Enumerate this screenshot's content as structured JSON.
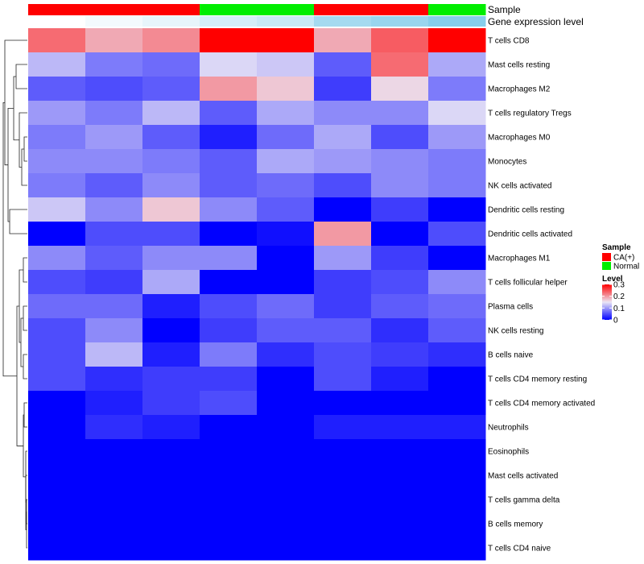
{
  "chart_data": {
    "type": "heatmap",
    "title": "",
    "rows": [
      "T cells CD8",
      "Mast cells resting",
      "Macrophages M2",
      "T cells regulatory  Tregs",
      "Macrophages M0",
      "Monocytes",
      "NK cells activated",
      "Dendritic cells resting",
      "Dendritic cells activated",
      "Macrophages M1",
      "T cells follicular helper",
      "Plasma cells",
      "NK cells resting",
      "B cells naive",
      "T cells CD4 memory resting",
      "T cells CD4 memory activated",
      "Neutrophils",
      "Eosinophils",
      "Mast cells activated",
      "T cells gamma delta",
      "B cells memory",
      "T cells CD4 naive"
    ],
    "values": [
      [
        0.23,
        0.19,
        0.21,
        0.3,
        0.3,
        0.19,
        0.24,
        0.3
      ],
      [
        0.12,
        0.08,
        0.07,
        0.14,
        0.13,
        0.06,
        0.23,
        0.11
      ],
      [
        0.06,
        0.05,
        0.06,
        0.2,
        0.17,
        0.04,
        0.16,
        0.08
      ],
      [
        0.1,
        0.08,
        0.12,
        0.06,
        0.11,
        0.09,
        0.09,
        0.14
      ],
      [
        0.08,
        0.1,
        0.06,
        0.02,
        0.07,
        0.11,
        0.05,
        0.1
      ],
      [
        0.09,
        0.09,
        0.08,
        0.06,
        0.11,
        0.1,
        0.09,
        0.08
      ],
      [
        0.08,
        0.06,
        0.09,
        0.06,
        0.07,
        0.05,
        0.09,
        0.08
      ],
      [
        0.13,
        0.09,
        0.17,
        0.09,
        0.06,
        0.0,
        0.04,
        0.0
      ],
      [
        0.0,
        0.05,
        0.05,
        0.0,
        0.01,
        0.2,
        0.0,
        0.05
      ],
      [
        0.09,
        0.06,
        0.09,
        0.09,
        0.0,
        0.1,
        0.04,
        0.0
      ],
      [
        0.05,
        0.04,
        0.11,
        0.0,
        0.0,
        0.04,
        0.05,
        0.09
      ],
      [
        0.07,
        0.07,
        0.02,
        0.05,
        0.07,
        0.04,
        0.06,
        0.07
      ],
      [
        0.05,
        0.09,
        0.0,
        0.04,
        0.06,
        0.06,
        0.03,
        0.06
      ],
      [
        0.05,
        0.12,
        0.02,
        0.08,
        0.03,
        0.05,
        0.04,
        0.03
      ],
      [
        0.05,
        0.03,
        0.04,
        0.04,
        0.0,
        0.05,
        0.02,
        0.0
      ],
      [
        0.0,
        0.02,
        0.04,
        0.05,
        0.0,
        0.0,
        0.0,
        0.0
      ],
      [
        0.0,
        0.03,
        0.02,
        0.0,
        0.0,
        0.02,
        0.02,
        0.02
      ],
      [
        0.0,
        0.0,
        0.0,
        0.0,
        0.0,
        0.0,
        0.0,
        0.0
      ],
      [
        0.0,
        0.0,
        0.0,
        0.0,
        0.0,
        0.0,
        0.0,
        0.0
      ],
      [
        0.0,
        0.0,
        0.0,
        0.0,
        0.0,
        0.0,
        0.0,
        0.0
      ],
      [
        0.0,
        0.0,
        0.0,
        0.0,
        0.0,
        0.0,
        0.0,
        0.0
      ],
      [
        0.0,
        0.0,
        0.0,
        0.0,
        0.0,
        0.0,
        0.0,
        0.0
      ]
    ],
    "column_annotations": {
      "sample_label": "Sample",
      "gene_label": "Gene expression level",
      "sample": [
        "CA(+)",
        "CA(+)",
        "CA(+)",
        "Normal",
        "Normal",
        "CA(+)",
        "CA(+)",
        "Normal"
      ],
      "gene_expression_level": [
        0.0,
        0.1,
        0.2,
        0.35,
        0.45,
        0.75,
        0.85,
        1.0
      ]
    },
    "color_scale": {
      "min": 0,
      "max": 0.3,
      "low": "#0000ff",
      "mid": "#ebe6f5",
      "high": "#ff0000",
      "mid_value": 0.15
    },
    "gene_expression_colors": {
      "low": "#ffffff",
      "high": "#87ceeb"
    },
    "legend": {
      "sample_title": "Sample",
      "sample_entries": [
        {
          "label": "CA(+)",
          "color": "#ff0000"
        },
        {
          "label": "Normal",
          "color": "#00ee00"
        }
      ],
      "level_title": "Level",
      "level_ticks": [
        "0.3",
        "0.2",
        "0.1",
        "0"
      ],
      "level_tick_values": [
        0.3,
        0.2,
        0.1,
        0
      ],
      "placement": "right"
    }
  }
}
